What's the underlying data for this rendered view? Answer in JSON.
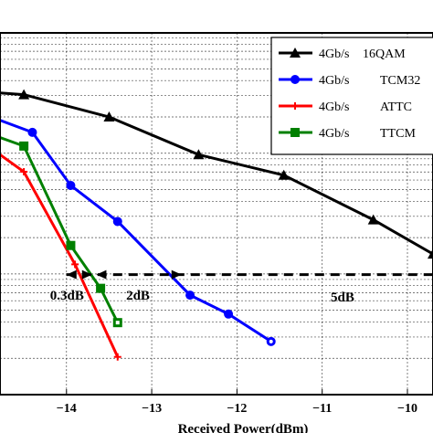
{
  "chart_data": {
    "type": "line",
    "xlabel": "Received Power(dBm)",
    "ylabel": "",
    "xlim": [
      -14.78,
      -9.7
    ],
    "ylim": [
      0,
      10.55
    ],
    "x_ticks": [
      -14,
      -13,
      -12,
      -11,
      -10
    ],
    "grid": true,
    "legend_position": "top-right",
    "series": [
      {
        "name": "4Gb/s 16QAM",
        "name_parts": [
          "4Gb/s",
          "16QAM"
        ],
        "color": "#000000",
        "marker": "triangle",
        "x": [
          -14.78,
          -14.5,
          -13.5,
          -12.45,
          -11.45,
          -10.4,
          -9.7
        ],
        "y": [
          8.8,
          8.75,
          8.1,
          7.0,
          6.4,
          5.1,
          4.1
        ]
      },
      {
        "name": "4Gb/s TCM32",
        "name_parts": [
          "4Gb/s",
          "TCM32"
        ],
        "color": "#0000ff",
        "marker": "circle",
        "x": [
          -14.78,
          -14.4,
          -13.95,
          -13.4,
          -12.55,
          -12.1,
          -11.6
        ],
        "y": [
          8.0,
          7.65,
          6.1,
          5.05,
          2.9,
          2.35,
          1.55
        ]
      },
      {
        "name": "4Gb/s ATTC",
        "name_parts": [
          "4Gb/s",
          "ATTC"
        ],
        "color": "#ff0000",
        "marker": "plus",
        "x": [
          -14.78,
          -14.5,
          -13.9,
          -13.4
        ],
        "y": [
          7.0,
          6.5,
          3.8,
          1.1
        ]
      },
      {
        "name": "4Gb/s TTCM",
        "name_parts": [
          "4Gb/s",
          "TTCM"
        ],
        "color": "#008000",
        "marker": "square",
        "x": [
          -14.78,
          -14.5,
          -13.95,
          -13.6,
          -13.4
        ],
        "y": [
          7.5,
          7.25,
          4.35,
          3.1,
          2.1
        ]
      }
    ],
    "reference_line": {
      "y": 3.5,
      "style": "dashed",
      "x_from": -14.0,
      "x_to": -9.7
    },
    "annotations": [
      {
        "text": "0.3dB",
        "x": -14.0,
        "y": 2.9
      },
      {
        "text": "2dB",
        "x": -13.3,
        "y": 2.9
      },
      {
        "text": "5dB",
        "x": -10.9,
        "y": 2.85
      }
    ],
    "arrows": [
      {
        "from": -14.0,
        "to": -13.7,
        "y": 3.5
      },
      {
        "from": -13.65,
        "to": -12.65,
        "y": 3.5
      }
    ]
  }
}
